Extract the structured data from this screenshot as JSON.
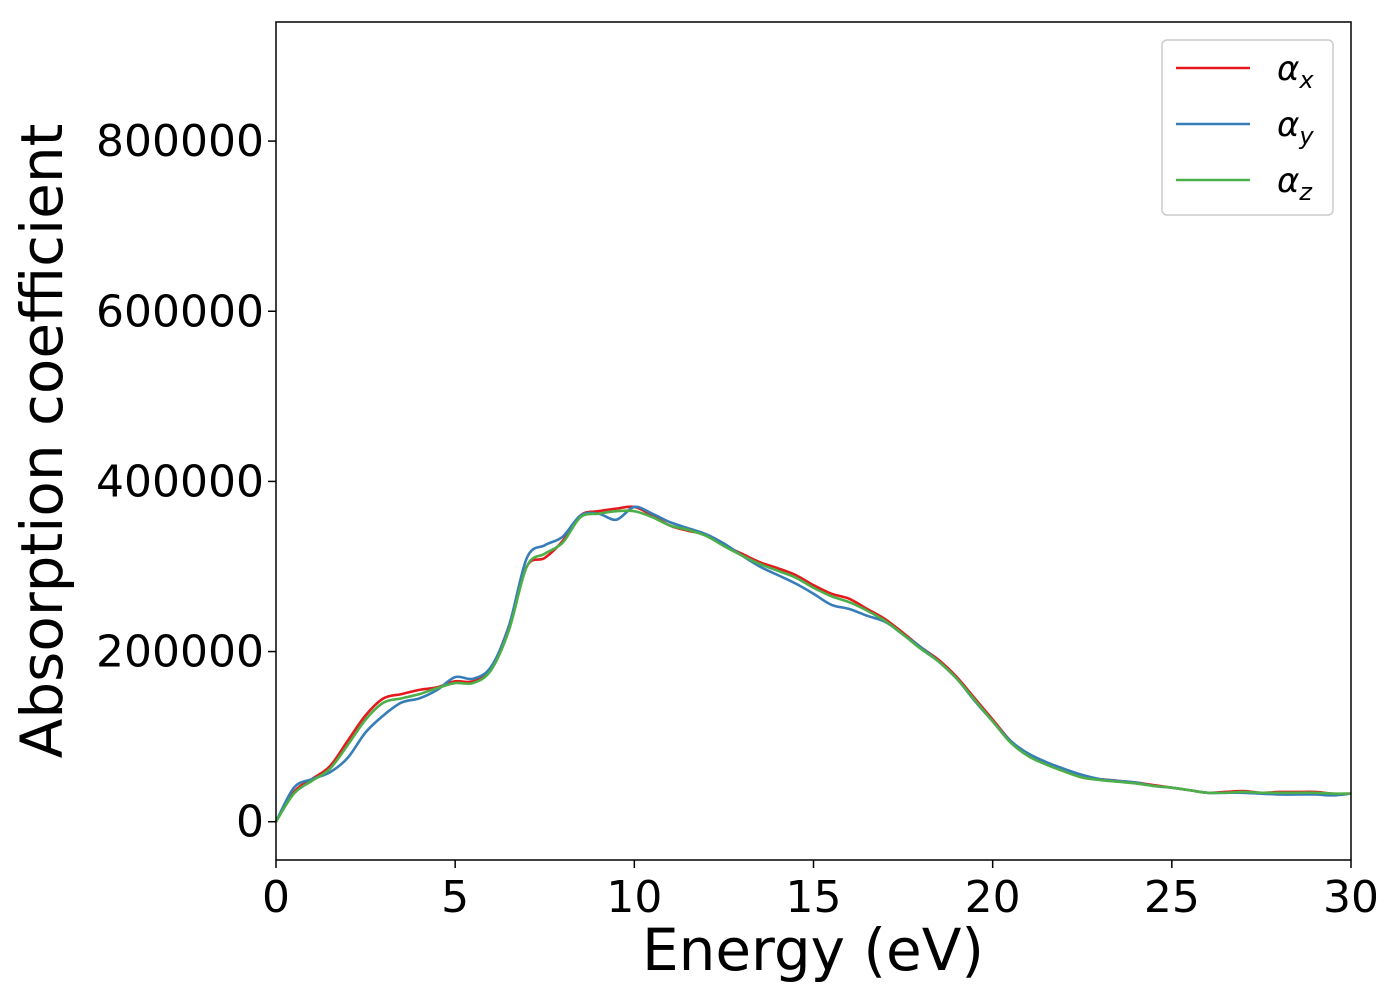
{
  "chart_data": {
    "type": "line",
    "title": "",
    "xlabel": "Energy (eV)",
    "ylabel": "Absorption coefficient",
    "xlim": [
      0,
      30
    ],
    "ylim": [
      -45000,
      940000
    ],
    "x_ticks": [
      0,
      5,
      10,
      15,
      20,
      25,
      30
    ],
    "x_tick_labels": [
      "0",
      "5",
      "10",
      "15",
      "20",
      "25",
      "30"
    ],
    "y_ticks": [
      0,
      200000,
      400000,
      600000,
      800000
    ],
    "y_tick_labels": [
      "0",
      "200000",
      "400000",
      "600000",
      "800000"
    ],
    "grid": false,
    "legend_position": "top-right",
    "series": [
      {
        "name": "αx",
        "legend_base": "α",
        "legend_sub": "x",
        "color": "#e41a1c",
        "x": [
          0,
          0.5,
          1,
          1.5,
          2,
          2.5,
          3,
          3.5,
          4,
          4.5,
          5,
          5.5,
          6,
          6.5,
          7,
          7.5,
          8,
          8.5,
          9,
          9.5,
          10,
          10.5,
          11,
          11.5,
          12,
          12.5,
          13,
          13.5,
          14,
          14.5,
          15,
          15.5,
          16,
          16.5,
          17,
          17.5,
          18,
          18.5,
          19,
          19.5,
          20,
          20.5,
          21,
          21.5,
          22,
          22.5,
          23,
          23.5,
          24,
          24.5,
          25,
          25.5,
          26,
          26.5,
          27,
          27.5,
          28,
          28.5,
          29,
          29.5,
          30
        ],
        "y": [
          0,
          35000,
          50000,
          65000,
          95000,
          125000,
          145000,
          150000,
          155000,
          158000,
          165000,
          165000,
          180000,
          230000,
          300000,
          310000,
          330000,
          360000,
          365000,
          368000,
          370000,
          360000,
          348000,
          342000,
          337000,
          325000,
          315000,
          305000,
          298000,
          290000,
          278000,
          268000,
          262000,
          250000,
          238000,
          222000,
          205000,
          190000,
          170000,
          145000,
          120000,
          95000,
          78000,
          68000,
          60000,
          52000,
          50000,
          48000,
          46000,
          43000,
          40000,
          37000,
          34000,
          35000,
          36000,
          34000,
          35000,
          35000,
          35000,
          33000,
          33000
        ]
      },
      {
        "name": "αy",
        "legend_base": "α",
        "legend_sub": "y",
        "color": "#377eb8",
        "x": [
          0,
          0.5,
          1,
          1.5,
          2,
          2.5,
          3,
          3.5,
          4,
          4.5,
          5,
          5.5,
          6,
          6.5,
          7,
          7.5,
          8,
          8.5,
          9,
          9.5,
          10,
          10.5,
          11,
          11.5,
          12,
          12.5,
          13,
          13.5,
          14,
          14.5,
          15,
          15.5,
          16,
          16.5,
          17,
          17.5,
          18,
          18.5,
          19,
          19.5,
          20,
          20.5,
          21,
          21.5,
          22,
          22.5,
          23,
          23.5,
          24,
          24.5,
          25,
          25.5,
          26,
          26.5,
          27,
          27.5,
          28,
          28.5,
          29,
          29.5,
          30
        ],
        "y": [
          0,
          40000,
          50000,
          58000,
          75000,
          105000,
          125000,
          140000,
          145000,
          155000,
          170000,
          168000,
          182000,
          230000,
          310000,
          325000,
          335000,
          360000,
          362000,
          355000,
          370000,
          362000,
          352000,
          345000,
          338000,
          327000,
          313000,
          300000,
          290000,
          280000,
          268000,
          255000,
          250000,
          242000,
          235000,
          220000,
          205000,
          188000,
          168000,
          142000,
          118000,
          95000,
          80000,
          70000,
          62000,
          55000,
          50000,
          48000,
          46000,
          42000,
          40000,
          37000,
          34000,
          34000,
          34000,
          33000,
          32000,
          32000,
          32000,
          31000,
          33000
        ]
      },
      {
        "name": "αz",
        "legend_base": "α",
        "legend_sub": "z",
        "color": "#4daf4a",
        "x": [
          0,
          0.5,
          1,
          1.5,
          2,
          2.5,
          3,
          3.5,
          4,
          4.5,
          5,
          5.5,
          6,
          6.5,
          7,
          7.5,
          8,
          8.5,
          9,
          9.5,
          10,
          10.5,
          11,
          11.5,
          12,
          12.5,
          13,
          13.5,
          14,
          14.5,
          15,
          15.5,
          16,
          16.5,
          17,
          17.5,
          18,
          18.5,
          19,
          19.5,
          20,
          20.5,
          21,
          21.5,
          22,
          22.5,
          23,
          23.5,
          24,
          24.5,
          25,
          25.5,
          26,
          26.5,
          27,
          27.5,
          28,
          28.5,
          29,
          29.5,
          30
        ],
        "y": [
          0,
          33000,
          48000,
          62000,
          90000,
          120000,
          140000,
          145000,
          150000,
          157000,
          163000,
          163000,
          178000,
          225000,
          300000,
          315000,
          328000,
          358000,
          362000,
          365000,
          365000,
          358000,
          348000,
          343000,
          336000,
          324000,
          313000,
          303000,
          295000,
          287000,
          275000,
          265000,
          258000,
          248000,
          236000,
          220000,
          203000,
          188000,
          168000,
          143000,
          118000,
          93000,
          77000,
          67000,
          59000,
          52000,
          49000,
          47000,
          45000,
          42000,
          40000,
          37000,
          34000,
          34000,
          35000,
          34000,
          34000,
          34000,
          34000,
          33000,
          33000
        ]
      }
    ]
  }
}
